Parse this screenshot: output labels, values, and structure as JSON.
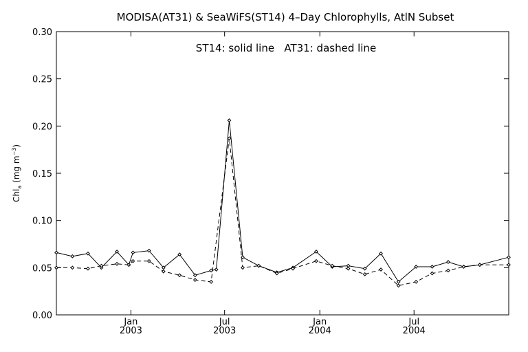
{
  "chart_data": {
    "type": "line",
    "title": "MODISA(AT31) & SeaWiFS(ST14) 4–Day Chlorophylls, AtlN Subset",
    "annotation": "ST14: solid line   AT31: dashed line",
    "ylabel": {
      "main": "Chl",
      "sub": "a",
      "unit_open": " (mg m",
      "unit_sup": "−3",
      "unit_close": ")"
    },
    "ylim": [
      0,
      0.3
    ],
    "yticks": [
      0.0,
      0.05,
      0.1,
      0.15,
      0.2,
      0.25,
      0.3
    ],
    "ytick_labels": [
      "0.00",
      "0.05",
      "0.10",
      "0.15",
      "0.20",
      "0.25",
      "0.30"
    ],
    "xlim": [
      "2002-08-10",
      "2004-12-31"
    ],
    "xticks": [
      {
        "date": "2003-01-01",
        "month": "Jan",
        "year": "2003"
      },
      {
        "date": "2003-07-01",
        "month": "Jul",
        "year": "2003"
      },
      {
        "date": "2004-01-01",
        "month": "Jan",
        "year": "2004"
      },
      {
        "date": "2004-07-01",
        "month": "Jul",
        "year": "2004"
      }
    ],
    "grid": false,
    "series": [
      {
        "name": "ST14",
        "style": "solid",
        "color": "#000000",
        "points": [
          [
            "2002-08-10",
            0.066
          ],
          [
            "2002-09-10",
            0.062
          ],
          [
            "2002-10-10",
            0.065
          ],
          [
            "2002-11-05",
            0.05
          ],
          [
            "2002-12-05",
            0.067
          ],
          [
            "2002-12-28",
            0.053
          ],
          [
            "2003-01-05",
            0.066
          ],
          [
            "2003-02-05",
            0.068
          ],
          [
            "2003-03-05",
            0.05
          ],
          [
            "2003-04-05",
            0.064
          ],
          [
            "2003-05-05",
            0.042
          ],
          [
            "2003-06-05",
            0.047
          ],
          [
            "2003-06-15",
            0.048
          ],
          [
            "2003-07-10",
            0.206
          ],
          [
            "2003-08-05",
            0.061
          ],
          [
            "2003-09-05",
            0.052
          ],
          [
            "2003-10-10",
            0.045
          ],
          [
            "2003-11-10",
            0.05
          ],
          [
            "2003-12-25",
            0.067
          ],
          [
            "2004-01-25",
            0.051
          ],
          [
            "2004-02-25",
            0.052
          ],
          [
            "2004-03-28",
            0.049
          ],
          [
            "2004-04-28",
            0.065
          ],
          [
            "2004-06-01",
            0.035
          ],
          [
            "2004-07-05",
            0.051
          ],
          [
            "2004-08-05",
            0.051
          ],
          [
            "2004-09-05",
            0.056
          ],
          [
            "2004-10-05",
            0.051
          ],
          [
            "2004-11-05",
            0.053
          ],
          [
            "2004-12-31",
            0.061
          ]
        ]
      },
      {
        "name": "AT31",
        "style": "dashed",
        "color": "#000000",
        "points": [
          [
            "2002-08-10",
            0.05
          ],
          [
            "2002-09-10",
            0.05
          ],
          [
            "2002-10-10",
            0.049
          ],
          [
            "2002-11-05",
            0.052
          ],
          [
            "2002-12-05",
            0.054
          ],
          [
            "2002-12-28",
            0.053
          ],
          [
            "2003-01-05",
            0.057
          ],
          [
            "2003-02-05",
            0.057
          ],
          [
            "2003-03-05",
            0.046
          ],
          [
            "2003-04-05",
            0.042
          ],
          [
            "2003-05-05",
            0.037
          ],
          [
            "2003-06-05",
            0.035
          ],
          [
            "2003-07-10",
            0.187
          ],
          [
            "2003-08-05",
            0.05
          ],
          [
            "2003-09-05",
            0.052
          ],
          [
            "2003-10-10",
            0.044
          ],
          [
            "2003-11-10",
            0.049
          ],
          [
            "2003-12-25",
            0.057
          ],
          [
            "2004-01-25",
            0.052
          ],
          [
            "2004-02-25",
            0.049
          ],
          [
            "2004-03-28",
            0.043
          ],
          [
            "2004-04-28",
            0.048
          ],
          [
            "2004-06-01",
            0.031
          ],
          [
            "2004-07-05",
            0.035
          ],
          [
            "2004-08-05",
            0.044
          ],
          [
            "2004-09-05",
            0.047
          ],
          [
            "2004-10-05",
            0.051
          ],
          [
            "2004-11-05",
            0.053
          ],
          [
            "2004-12-31",
            0.053
          ]
        ]
      }
    ]
  }
}
